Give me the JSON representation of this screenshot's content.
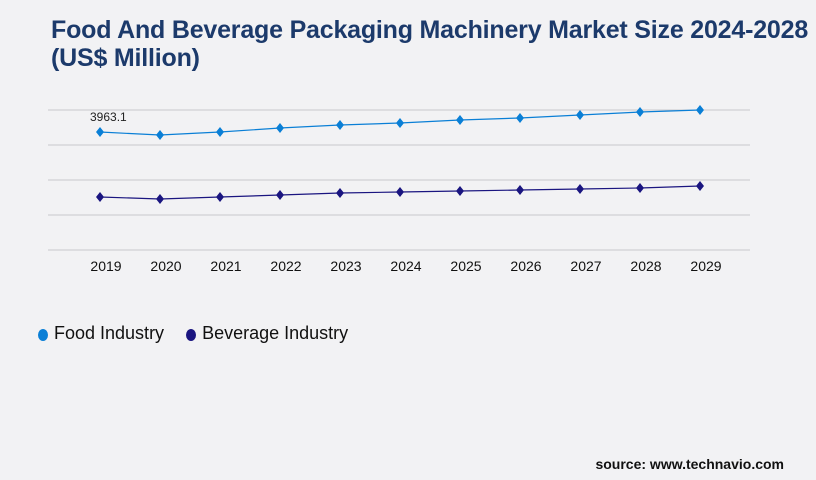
{
  "chart_data": {
    "type": "line",
    "title": "Food And Beverage Packaging Machinery Market Size 2024-2028 (US$ Million)",
    "xlabel": "",
    "ylabel": "",
    "categories": [
      "2019",
      "2020",
      "2021",
      "2022",
      "2023",
      "2024",
      "2025",
      "2026",
      "2027",
      "2028",
      "2029"
    ],
    "ylim": [
      0,
      4703
    ],
    "grid": true,
    "legend_position": "bottom-left",
    "series": [
      {
        "name": "Food Industry",
        "color": "#0a7fd6",
        "values": [
          3963.1,
          3863,
          3963,
          4098,
          4199,
          4266,
          4367,
          4434,
          4535,
          4635,
          4703
        ]
      },
      {
        "name": "Beverage Industry",
        "color": "#1a1580",
        "values": [
          1780,
          1713,
          1780,
          1847,
          1915,
          1948,
          1982,
          2015,
          2049,
          2083,
          2150
        ]
      }
    ],
    "annotations": [
      {
        "series": 0,
        "index": 0,
        "text": "3963.1"
      }
    ]
  },
  "source": "source: www.technavio.com"
}
